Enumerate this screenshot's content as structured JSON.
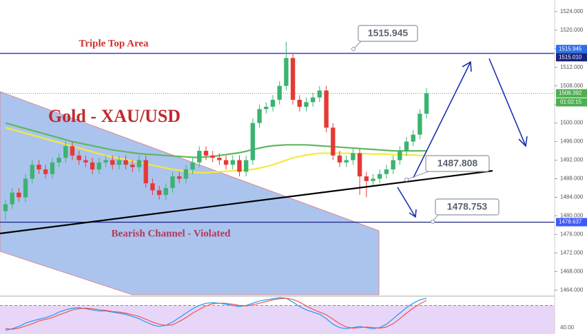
{
  "chart_data": {
    "type": "candlestick",
    "title": "Gold - XAU/USD",
    "annotations": [
      "Triple Top Area",
      "Bearish Channel - Violated"
    ],
    "up_color": "#3cb371",
    "down_color": "#e53935",
    "open": [
      1481,
      1482.5,
      1485,
      1484,
      1488,
      1491,
      1490,
      1489,
      1491.5,
      1492.5,
      1495,
      1493,
      1492,
      1491.5,
      1490,
      1491.5,
      1492,
      1491,
      1492,
      1491,
      1490.5,
      1492,
      1487,
      1485.5,
      1484.5,
      1486,
      1488.5,
      1488,
      1490,
      1491.5,
      1494,
      1493,
      1492.5,
      1492,
      1491,
      1492,
      1489.5,
      1492,
      1500,
      1503,
      1503.5,
      1505,
      1508,
      1514,
      1505,
      1503.5,
      1504.5,
      1505.5,
      1507,
      1499,
      1493,
      1491.5,
      1492,
      1493.5,
      1488.5,
      1487.5,
      1488,
      1489,
      1490,
      1492,
      1494,
      1496,
      1497.5,
      1502
    ],
    "high": [
      1483.5,
      1486,
      1486,
      1489,
      1492,
      1492,
      1491,
      1492.5,
      1493.5,
      1496,
      1496,
      1494,
      1493,
      1492.5,
      1492.5,
      1493,
      1493,
      1493,
      1493,
      1492,
      1493,
      1493,
      1488,
      1486.5,
      1487,
      1489.5,
      1489.5,
      1491,
      1492.5,
      1495,
      1495,
      1494,
      1493.5,
      1493,
      1493,
      1493,
      1493,
      1501,
      1504,
      1504.5,
      1506,
      1509,
      1517.5,
      1515,
      1506,
      1505.5,
      1506.5,
      1508,
      1508,
      1500,
      1494,
      1493,
      1494.5,
      1494.5,
      1489.5,
      1489,
      1490,
      1491,
      1493,
      1495,
      1497,
      1498.5,
      1503,
      1507.5
    ],
    "low": [
      1479,
      1481.5,
      1483,
      1483,
      1487,
      1489,
      1488,
      1488,
      1490.5,
      1491.5,
      1492,
      1491,
      1490.5,
      1489,
      1489,
      1490.5,
      1490,
      1490,
      1490,
      1489.5,
      1489.5,
      1486,
      1484.5,
      1483.5,
      1483.5,
      1485,
      1487,
      1487,
      1489,
      1490.5,
      1492,
      1491.5,
      1491,
      1490,
      1490,
      1488.5,
      1488.5,
      1491,
      1499,
      1502,
      1502.5,
      1504,
      1507,
      1504,
      1502.5,
      1502.5,
      1503.5,
      1504.5,
      1498,
      1492,
      1490.5,
      1490.5,
      1491,
      1484.5,
      1484,
      1486.5,
      1487,
      1488,
      1489,
      1491,
      1493,
      1495,
      1496.5,
      1501
    ],
    "close": [
      1482.5,
      1485,
      1484,
      1488,
      1491,
      1490,
      1489,
      1491.5,
      1492.5,
      1495,
      1493,
      1492,
      1491.5,
      1490,
      1491.5,
      1492,
      1491,
      1492,
      1491,
      1490.5,
      1492,
      1487,
      1485.5,
      1484.5,
      1486,
      1488.5,
      1488,
      1490,
      1491.5,
      1494,
      1493,
      1492.5,
      1492,
      1491,
      1492,
      1489.5,
      1492,
      1500,
      1503,
      1503.5,
      1505,
      1508,
      1514,
      1505,
      1503.5,
      1504.5,
      1505.5,
      1507,
      1499,
      1493,
      1491.5,
      1492,
      1493.5,
      1488.5,
      1487.5,
      1488,
      1489,
      1490,
      1492,
      1494,
      1496,
      1497.5,
      1502,
      1506.4
    ],
    "overlays": [
      {
        "color": "#5cb85c",
        "values": [
          1500,
          1499.6,
          1499.2,
          1498.8,
          1498.4,
          1498,
          1497.6,
          1497.2,
          1496.8,
          1496.4,
          1496,
          1495.7,
          1495.4,
          1495.1,
          1494.8,
          1494.5,
          1494.2,
          1494,
          1493.8,
          1493.6,
          1493.4,
          1493.3,
          1493.2,
          1493.1,
          1493,
          1492.9,
          1492.8,
          1492.7,
          1492.6,
          1492.6,
          1492.7,
          1492.8,
          1493,
          1493.2,
          1493.4,
          1493.6,
          1493.9,
          1494.3,
          1494.6,
          1494.9,
          1495.1,
          1495.2,
          1495.3,
          1495.3,
          1495.3,
          1495.3,
          1495.2,
          1495.1,
          1495,
          1494.9,
          1494.8,
          1494.7,
          1494.6,
          1494.5,
          1494.4,
          1494.3,
          1494.2,
          1494.1,
          1494,
          1494,
          1494,
          1494,
          1494,
          1494
        ]
      },
      {
        "color": "#f5e93a",
        "values": [
          1499,
          1498.6,
          1498.2,
          1497.8,
          1497.4,
          1497,
          1496.6,
          1496.2,
          1495.8,
          1495.4,
          1495,
          1494.6,
          1494.2,
          1493.8,
          1493.4,
          1493,
          1492.7,
          1492.4,
          1492.1,
          1491.8,
          1491.5,
          1491.2,
          1490.9,
          1490.6,
          1490.3,
          1490,
          1489.8,
          1489.6,
          1489.4,
          1489.3,
          1489.3,
          1489.4,
          1489.5,
          1489.6,
          1489.7,
          1489.8,
          1489.9,
          1490,
          1490.3,
          1490.6,
          1491,
          1491.5,
          1492,
          1492.5,
          1492.8,
          1493.1,
          1493.3,
          1493.5,
          1493.5,
          1493.5,
          1493.5,
          1493.5,
          1493.4,
          1493.4,
          1493.4,
          1493.3,
          1493.3,
          1493.3,
          1493.2,
          1493.2,
          1493.1,
          1493.1,
          1493,
          1493
        ]
      }
    ],
    "ylim": [
      1463,
      1526.5
    ],
    "yticks": [
      {
        "value": 1464,
        "label": "1464.000"
      },
      {
        "value": 1468,
        "label": "1468.000"
      },
      {
        "value": 1472,
        "label": "1472.000"
      },
      {
        "value": 1476,
        "label": "1476.000"
      },
      {
        "value": 1480,
        "label": "1480.000"
      },
      {
        "value": 1484,
        "label": "1484.000"
      },
      {
        "value": 1488,
        "label": "1488.000"
      },
      {
        "value": 1492,
        "label": "1492.000"
      },
      {
        "value": 1496,
        "label": "1496.000"
      },
      {
        "value": 1500,
        "label": "1500.000"
      },
      {
        "value": 1504,
        "label": "1504.000"
      },
      {
        "value": 1508,
        "label": "1508.000"
      },
      {
        "value": 1512,
        "label": "1512.000"
      },
      {
        "value": 1516,
        "label": "1516.000"
      },
      {
        "value": 1520,
        "label": "1520.000"
      },
      {
        "value": 1524,
        "label": "1524.000"
      }
    ],
    "grid": false,
    "price_labels": [
      1515.945,
      {
        "value": 1515.01,
        "label": "1515.010"
      },
      1506.392,
      1478.637
    ],
    "price_label_colors": [
      "#2f6fe6",
      "#1a237e",
      "#4caf50",
      "#3d5afe"
    ],
    "countdown": "01:02:15",
    "callouts": [
      1515.945,
      1487.808,
      1478.753
    ],
    "oscillator": {
      "ylim": [
        28.4,
        96.8
      ],
      "yticks": [
        {
          "value": 40,
          "label": "40.00"
        }
      ],
      "levels": [
        80
      ],
      "lines": [
        {
          "color": "#2196f3",
          "values": [
            35,
            38,
            42,
            48,
            52,
            55,
            58,
            62,
            68,
            72,
            75,
            76,
            74,
            72,
            70,
            70,
            68,
            66,
            64,
            60,
            56,
            50,
            45,
            42,
            44,
            50,
            58,
            66,
            74,
            80,
            84,
            85,
            84,
            82,
            80,
            78,
            80,
            84,
            88,
            90,
            92,
            94,
            93,
            86,
            78,
            72,
            68,
            64,
            56,
            46,
            40,
            38,
            40,
            42,
            40,
            38,
            40,
            46,
            56,
            66,
            76,
            84,
            90,
            93
          ]
        },
        {
          "color": "#ef5350",
          "values": [
            38,
            37,
            39,
            43,
            47,
            52,
            55,
            58,
            63,
            67,
            72,
            74,
            75,
            74,
            72,
            71,
            69,
            68,
            66,
            63,
            60,
            55,
            50,
            46,
            44,
            45,
            51,
            58,
            66,
            73,
            79,
            83,
            84,
            84,
            82,
            80,
            79,
            81,
            84,
            87,
            90,
            92,
            93,
            91,
            86,
            79,
            73,
            68,
            63,
            55,
            47,
            41,
            39,
            40,
            41,
            40,
            39,
            41,
            47,
            56,
            66,
            75,
            83,
            89
          ]
        }
      ]
    }
  }
}
